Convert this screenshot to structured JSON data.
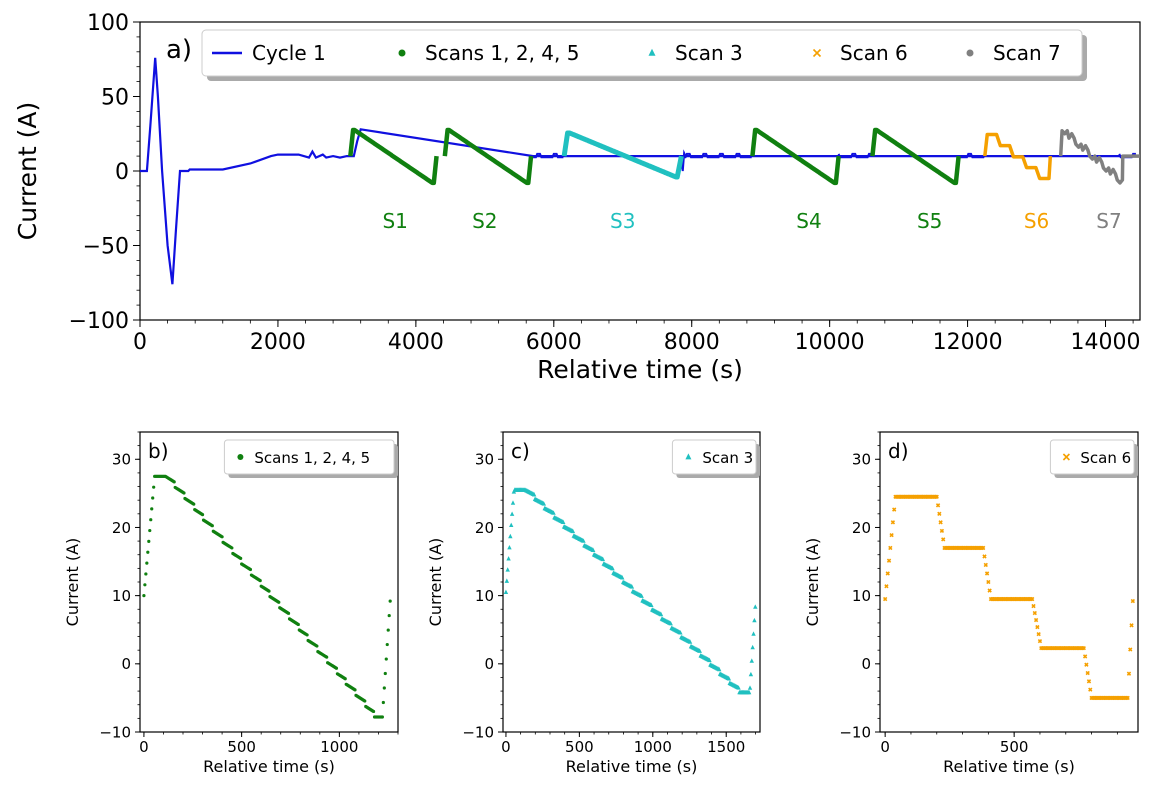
{
  "chart_data": [
    {
      "id": "a",
      "type": "line",
      "panel_label": "a)",
      "xlabel": "Relative time (s)",
      "ylabel": "Current (A)",
      "xlim": [
        0,
        14500
      ],
      "ylim": [
        -100,
        100
      ],
      "x_ticks": [
        0,
        2000,
        4000,
        6000,
        8000,
        10000,
        12000,
        14000
      ],
      "y_ticks": [
        -100,
        -50,
        0,
        50,
        100
      ],
      "x_tick_labels": [
        "0",
        "2000",
        "4000",
        "6000",
        "8000",
        "10000",
        "12000",
        "14000"
      ],
      "y_tick_labels": [
        "−100",
        "−50",
        "0",
        "50",
        "100"
      ],
      "legend": {
        "placement": "top",
        "entries": [
          {
            "label": "Cycle 1",
            "color": "#1010e0",
            "marker": "line"
          },
          {
            "label": "Scans 1, 2, 4, 5",
            "color": "#108010",
            "marker": "circle"
          },
          {
            "label": "Scan 3",
            "color": "#20c0c0",
            "marker": "triangle"
          },
          {
            "label": "Scan 6",
            "color": "#f5a000",
            "marker": "x"
          },
          {
            "label": "Scan 7",
            "color": "#808080",
            "marker": "circle"
          }
        ]
      },
      "cycle1": {
        "name": "Cycle 1",
        "color": "#1010e0",
        "points": [
          [
            0,
            0
          ],
          [
            100,
            0
          ],
          [
            150,
            30
          ],
          [
            220,
            76
          ],
          [
            260,
            50
          ],
          [
            320,
            0
          ],
          [
            400,
            -50
          ],
          [
            470,
            -76
          ],
          [
            520,
            -40
          ],
          [
            580,
            0
          ],
          [
            700,
            0
          ],
          [
            720,
            1
          ],
          [
            1200,
            1
          ],
          [
            1600,
            5
          ],
          [
            1900,
            10
          ],
          [
            2000,
            11
          ],
          [
            2300,
            11
          ],
          [
            2450,
            9
          ],
          [
            2500,
            13
          ],
          [
            2550,
            9
          ],
          [
            2650,
            11
          ],
          [
            2700,
            9
          ],
          [
            2800,
            10
          ],
          [
            2900,
            9
          ],
          [
            3000,
            10
          ],
          [
            3100,
            10
          ],
          [
            3150,
            20
          ],
          [
            3200,
            28
          ],
          [
            5700,
            10
          ],
          [
            6150,
            10
          ],
          [
            8000,
            10
          ],
          [
            8100,
            10
          ],
          [
            9000,
            10
          ],
          [
            10200,
            10
          ],
          [
            10700,
            10
          ],
          [
            12000,
            10
          ],
          [
            12250,
            10
          ],
          [
            14400,
            10
          ]
        ]
      },
      "scans_1245": {
        "name": "Scans 1, 2, 4, 5",
        "color": "#108010",
        "segments": [
          {
            "t0": 3050,
            "peak": 27.5,
            "end": -8,
            "duration": 1250
          },
          {
            "t0": 4420,
            "peak": 27.5,
            "end": -8,
            "duration": 1250
          },
          {
            "t0": 8880,
            "peak": 27.5,
            "end": -8,
            "duration": 1250
          },
          {
            "t0": 10620,
            "peak": 27.5,
            "end": -8,
            "duration": 1250
          }
        ]
      },
      "scan_3": {
        "name": "Scan 3",
        "color": "#20c0c0",
        "segment": {
          "t0": 6150,
          "peak": 25.5,
          "end": -4,
          "duration": 1700
        }
      },
      "scan_6": {
        "name": "Scan 6",
        "color": "#f5a000",
        "t0": 12250,
        "levels": [
          24.5,
          17,
          9.5,
          2.3,
          -5
        ]
      },
      "scan_7": {
        "name": "Scan 7",
        "color": "#808080",
        "t0": 13350,
        "levels": [
          27,
          22,
          18,
          14,
          10,
          6,
          2,
          -2,
          -6
        ]
      },
      "annotations": [
        {
          "text": "S1",
          "x": 3700,
          "y": -33,
          "color": "#108010"
        },
        {
          "text": "S2",
          "x": 5000,
          "y": -33,
          "color": "#108010"
        },
        {
          "text": "S3",
          "x": 7000,
          "y": -33,
          "color": "#20c0c0"
        },
        {
          "text": "S4",
          "x": 9700,
          "y": -33,
          "color": "#108010"
        },
        {
          "text": "S5",
          "x": 11450,
          "y": -33,
          "color": "#108010"
        },
        {
          "text": "S6",
          "x": 13000,
          "y": -33,
          "color": "#f5a000"
        },
        {
          "text": "S7",
          "x": 14050,
          "y": -33,
          "color": "#808080"
        }
      ]
    },
    {
      "id": "b",
      "type": "scatter",
      "panel_label": "b)",
      "xlabel": "Relative time (s)",
      "ylabel": "Current (A)",
      "xlim": [
        -20,
        1300
      ],
      "ylim": [
        -10,
        34
      ],
      "x_ticks": [
        0,
        500,
        1000
      ],
      "y_ticks": [
        -10,
        0,
        10,
        20,
        30
      ],
      "x_tick_labels": [
        "0",
        "500",
        "1000"
      ],
      "y_tick_labels": [
        "−10",
        "0",
        "10",
        "20",
        "30"
      ],
      "legend": {
        "placement": "top-right",
        "entries": [
          {
            "label": "Scans 1, 2, 4, 5",
            "color": "#108010",
            "marker": "circle"
          }
        ]
      },
      "series": [
        {
          "name": "Scans 1, 2, 4, 5",
          "color": "#108010",
          "marker": "circle",
          "start": 10,
          "rise_end": 55,
          "peak": 27.5,
          "plateau_end": 110,
          "fall_end": 1180,
          "min": -7.8,
          "trough_end": 1220,
          "end_time": 1260,
          "end_value": 9.2,
          "step_count": 22,
          "sample_dt": 5
        }
      ]
    },
    {
      "id": "c",
      "type": "scatter",
      "panel_label": "c)",
      "xlabel": "Relative time (s)",
      "ylabel": "Current (A)",
      "xlim": [
        -20,
        1730
      ],
      "ylim": [
        -10,
        34
      ],
      "x_ticks": [
        0,
        500,
        1000,
        1500
      ],
      "y_ticks": [
        -10,
        0,
        10,
        20,
        30
      ],
      "x_tick_labels": [
        "0",
        "500",
        "1000",
        "1500"
      ],
      "y_tick_labels": [
        "−10",
        "0",
        "10",
        "20",
        "30"
      ],
      "legend": {
        "placement": "top-right",
        "entries": [
          {
            "label": "Scan 3",
            "color": "#20c0c0",
            "marker": "triangle"
          }
        ]
      },
      "series": [
        {
          "name": "Scan 3",
          "color": "#20c0c0",
          "marker": "triangle",
          "start": 10.5,
          "rise_end": 55,
          "peak": 25.5,
          "plateau_end": 130,
          "fall_end": 1590,
          "min": -4.2,
          "trough_end": 1660,
          "end_time": 1700,
          "end_value": 9,
          "step_count": 22,
          "sample_dt": 6
        }
      ]
    },
    {
      "id": "d",
      "type": "scatter",
      "panel_label": "d)",
      "xlabel": "Relative time (s)",
      "ylabel": "Current (A)",
      "xlim": [
        -20,
        980
      ],
      "ylim": [
        -10,
        34
      ],
      "x_ticks": [
        0,
        500
      ],
      "y_ticks": [
        -10,
        0,
        10,
        20,
        30
      ],
      "x_tick_labels": [
        "0",
        "500"
      ],
      "y_tick_labels": [
        "−10",
        "0",
        "10",
        "20",
        "30"
      ],
      "legend": {
        "placement": "top-right",
        "entries": [
          {
            "label": "Scan 6",
            "color": "#f5a000",
            "marker": "x"
          }
        ]
      },
      "series": [
        {
          "name": "Scan 6",
          "color": "#f5a000",
          "marker": "x",
          "start": 9.5,
          "steps": [
            [
              40,
              200,
              24.5
            ],
            [
              230,
              380,
              17
            ],
            [
              410,
              570,
              9.5
            ],
            [
              605,
              770,
              2.3
            ],
            [
              800,
              940,
              -5
            ]
          ],
          "end_time": 960,
          "end_value": 9.2,
          "sample_dt": 5
        }
      ]
    }
  ]
}
